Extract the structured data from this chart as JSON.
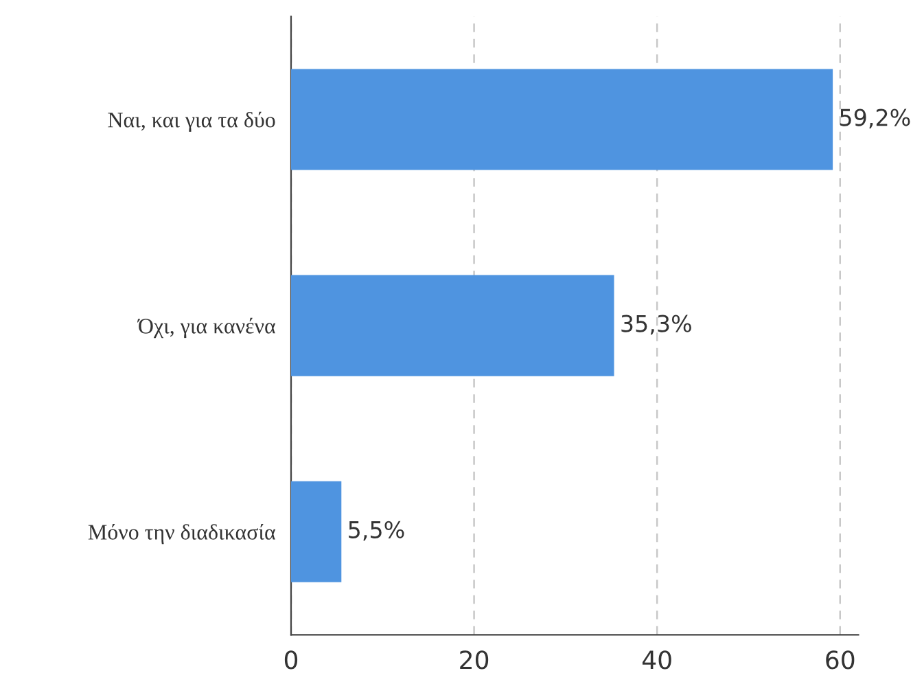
{
  "chart_data": {
    "type": "bar",
    "orientation": "horizontal",
    "categories": [
      "Ναι, και για τα δύο",
      "Όχι, για κανένα",
      "Μόνο την διαδικασία"
    ],
    "values": [
      59.2,
      35.3,
      5.5
    ],
    "color": "#4f94e0",
    "value_labels": [
      "59,2%",
      "35,3%",
      "5,5%"
    ],
    "xlim": [
      0,
      62
    ],
    "xticks": [
      0,
      20,
      40,
      60
    ],
    "grid": "x"
  }
}
